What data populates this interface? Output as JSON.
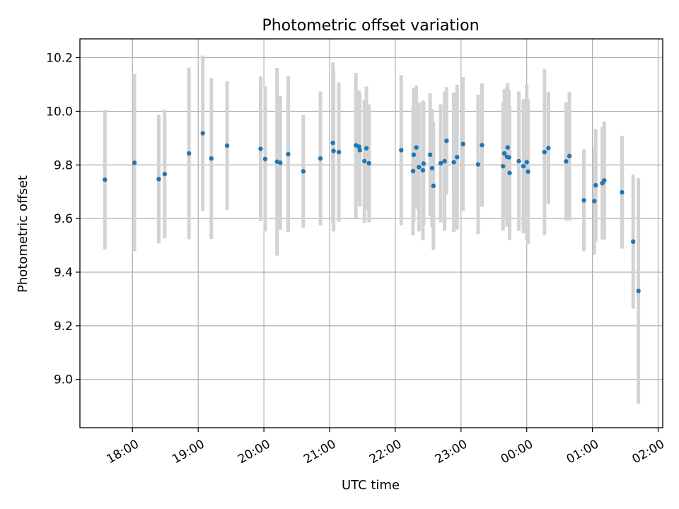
{
  "chart_data": {
    "type": "scatter",
    "title": "Photometric offset variation",
    "xlabel": "UTC time",
    "ylabel": "Photometric offset",
    "x_unit": "hours UTC (values > 24 are the following day)",
    "xlim": [
      17.2,
      26.07
    ],
    "ylim": [
      8.82,
      10.27
    ],
    "grid": true,
    "x_ticks": [
      {
        "value": 18,
        "label": "18:00"
      },
      {
        "value": 19,
        "label": "19:00"
      },
      {
        "value": 20,
        "label": "20:00"
      },
      {
        "value": 21,
        "label": "21:00"
      },
      {
        "value": 22,
        "label": "22:00"
      },
      {
        "value": 23,
        "label": "23:00"
      },
      {
        "value": 24,
        "label": "00:00"
      },
      {
        "value": 25,
        "label": "01:00"
      },
      {
        "value": 26,
        "label": "02:00"
      }
    ],
    "y_ticks": [
      {
        "value": 9.0,
        "label": "9.0"
      },
      {
        "value": 9.2,
        "label": "9.2"
      },
      {
        "value": 9.4,
        "label": "9.4"
      },
      {
        "value": 9.6,
        "label": "9.6"
      },
      {
        "value": 9.8,
        "label": "9.8"
      },
      {
        "value": 10.0,
        "label": "10.0"
      },
      {
        "value": 10.2,
        "label": "10.2"
      }
    ],
    "marker_color": "#1f77b4",
    "errorbar_color": "#d3d3d3",
    "series": [
      {
        "points": [
          {
            "x": 17.58,
            "y": 9.745,
            "err_low": 0.26,
            "err_high": 0.26
          },
          {
            "x": 18.03,
            "y": 9.808,
            "err_low": 0.33,
            "err_high": 0.33
          },
          {
            "x": 18.4,
            "y": 9.747,
            "err_low": 0.24,
            "err_high": 0.24
          },
          {
            "x": 18.49,
            "y": 9.766,
            "err_low": 0.24,
            "err_high": 0.24
          },
          {
            "x": 18.86,
            "y": 9.843,
            "err_low": 0.32,
            "err_high": 0.32
          },
          {
            "x": 19.07,
            "y": 9.918,
            "err_low": 0.29,
            "err_high": 0.29
          },
          {
            "x": 19.2,
            "y": 9.824,
            "err_low": 0.3,
            "err_high": 0.3
          },
          {
            "x": 19.44,
            "y": 9.872,
            "err_low": 0.24,
            "err_high": 0.24
          },
          {
            "x": 19.95,
            "y": 9.86,
            "err_low": 0.27,
            "err_high": 0.27
          },
          {
            "x": 20.02,
            "y": 9.822,
            "err_low": 0.27,
            "err_high": 0.27
          },
          {
            "x": 20.2,
            "y": 9.812,
            "err_low": 0.35,
            "err_high": 0.35
          },
          {
            "x": 20.25,
            "y": 9.808,
            "err_low": 0.25,
            "err_high": 0.25
          },
          {
            "x": 20.37,
            "y": 9.84,
            "err_low": 0.29,
            "err_high": 0.29
          },
          {
            "x": 20.6,
            "y": 9.776,
            "err_low": 0.21,
            "err_high": 0.21
          },
          {
            "x": 20.86,
            "y": 9.824,
            "err_low": 0.25,
            "err_high": 0.25
          },
          {
            "x": 21.05,
            "y": 9.882,
            "err_low": 0.3,
            "err_high": 0.3
          },
          {
            "x": 21.06,
            "y": 9.852,
            "err_low": 0.3,
            "err_high": 0.3
          },
          {
            "x": 21.14,
            "y": 9.848,
            "err_low": 0.26,
            "err_high": 0.26
          },
          {
            "x": 21.4,
            "y": 9.873,
            "err_low": 0.27,
            "err_high": 0.27
          },
          {
            "x": 21.45,
            "y": 9.868,
            "err_low": 0.21,
            "err_high": 0.21
          },
          {
            "x": 21.46,
            "y": 9.855,
            "err_low": 0.21,
            "err_high": 0.21
          },
          {
            "x": 21.53,
            "y": 9.814,
            "err_low": 0.23,
            "err_high": 0.23
          },
          {
            "x": 21.56,
            "y": 9.862,
            "err_low": 0.23,
            "err_high": 0.23
          },
          {
            "x": 21.6,
            "y": 9.806,
            "err_low": 0.22,
            "err_high": 0.22
          },
          {
            "x": 22.09,
            "y": 9.855,
            "err_low": 0.28,
            "err_high": 0.28
          },
          {
            "x": 22.27,
            "y": 9.777,
            "err_low": 0.24,
            "err_high": 0.24
          },
          {
            "x": 22.28,
            "y": 9.838,
            "err_low": 0.25,
            "err_high": 0.25
          },
          {
            "x": 22.32,
            "y": 9.865,
            "err_low": 0.23,
            "err_high": 0.23
          },
          {
            "x": 22.36,
            "y": 9.792,
            "err_low": 0.24,
            "err_high": 0.24
          },
          {
            "x": 22.42,
            "y": 9.78,
            "err_low": 0.26,
            "err_high": 0.26
          },
          {
            "x": 22.43,
            "y": 9.805,
            "err_low": 0.23,
            "err_high": 0.23
          },
          {
            "x": 22.53,
            "y": 9.838,
            "err_low": 0.23,
            "err_high": 0.23
          },
          {
            "x": 22.56,
            "y": 9.788,
            "err_low": 0.22,
            "err_high": 0.22
          },
          {
            "x": 22.58,
            "y": 9.722,
            "err_low": 0.24,
            "err_high": 0.24
          },
          {
            "x": 22.69,
            "y": 9.806,
            "err_low": 0.22,
            "err_high": 0.22
          },
          {
            "x": 22.75,
            "y": 9.814,
            "err_low": 0.26,
            "err_high": 0.26
          },
          {
            "x": 22.78,
            "y": 9.89,
            "err_low": 0.2,
            "err_high": 0.2
          },
          {
            "x": 22.89,
            "y": 9.81,
            "err_low": 0.26,
            "err_high": 0.26
          },
          {
            "x": 22.94,
            "y": 9.829,
            "err_low": 0.27,
            "err_high": 0.27
          },
          {
            "x": 23.03,
            "y": 9.878,
            "err_low": 0.25,
            "err_high": 0.25
          },
          {
            "x": 23.26,
            "y": 9.802,
            "err_low": 0.26,
            "err_high": 0.26
          },
          {
            "x": 23.32,
            "y": 9.874,
            "err_low": 0.23,
            "err_high": 0.23
          },
          {
            "x": 23.64,
            "y": 9.795,
            "err_low": 0.24,
            "err_high": 0.24
          },
          {
            "x": 23.66,
            "y": 9.843,
            "err_low": 0.24,
            "err_high": 0.24
          },
          {
            "x": 23.7,
            "y": 9.83,
            "err_low": 0.26,
            "err_high": 0.26
          },
          {
            "x": 23.71,
            "y": 9.865,
            "err_low": 0.24,
            "err_high": 0.24
          },
          {
            "x": 23.73,
            "y": 9.828,
            "err_low": 0.25,
            "err_high": 0.25
          },
          {
            "x": 23.74,
            "y": 9.77,
            "err_low": 0.25,
            "err_high": 0.25
          },
          {
            "x": 23.88,
            "y": 9.814,
            "err_low": 0.26,
            "err_high": 0.26
          },
          {
            "x": 23.95,
            "y": 9.795,
            "err_low": 0.25,
            "err_high": 0.25
          },
          {
            "x": 24.0,
            "y": 9.81,
            "err_low": 0.29,
            "err_high": 0.29
          },
          {
            "x": 24.02,
            "y": 9.775,
            "err_low": 0.27,
            "err_high": 0.27
          },
          {
            "x": 24.27,
            "y": 9.848,
            "err_low": 0.31,
            "err_high": 0.31
          },
          {
            "x": 24.33,
            "y": 9.863,
            "err_low": 0.21,
            "err_high": 0.21
          },
          {
            "x": 24.6,
            "y": 9.813,
            "err_low": 0.22,
            "err_high": 0.22
          },
          {
            "x": 24.65,
            "y": 9.833,
            "err_low": 0.24,
            "err_high": 0.24
          },
          {
            "x": 24.87,
            "y": 9.668,
            "err_low": 0.19,
            "err_high": 0.19
          },
          {
            "x": 25.03,
            "y": 9.665,
            "err_low": 0.2,
            "err_high": 0.2
          },
          {
            "x": 25.05,
            "y": 9.724,
            "err_low": 0.21,
            "err_high": 0.21
          },
          {
            "x": 25.15,
            "y": 9.732,
            "err_low": 0.21,
            "err_high": 0.21
          },
          {
            "x": 25.18,
            "y": 9.742,
            "err_low": 0.22,
            "err_high": 0.22
          },
          {
            "x": 25.45,
            "y": 9.698,
            "err_low": 0.21,
            "err_high": 0.21
          },
          {
            "x": 25.62,
            "y": 9.514,
            "err_low": 0.25,
            "err_high": 0.25
          },
          {
            "x": 25.7,
            "y": 9.33,
            "err_low": 0.42,
            "err_high": 0.42
          }
        ]
      }
    ]
  }
}
